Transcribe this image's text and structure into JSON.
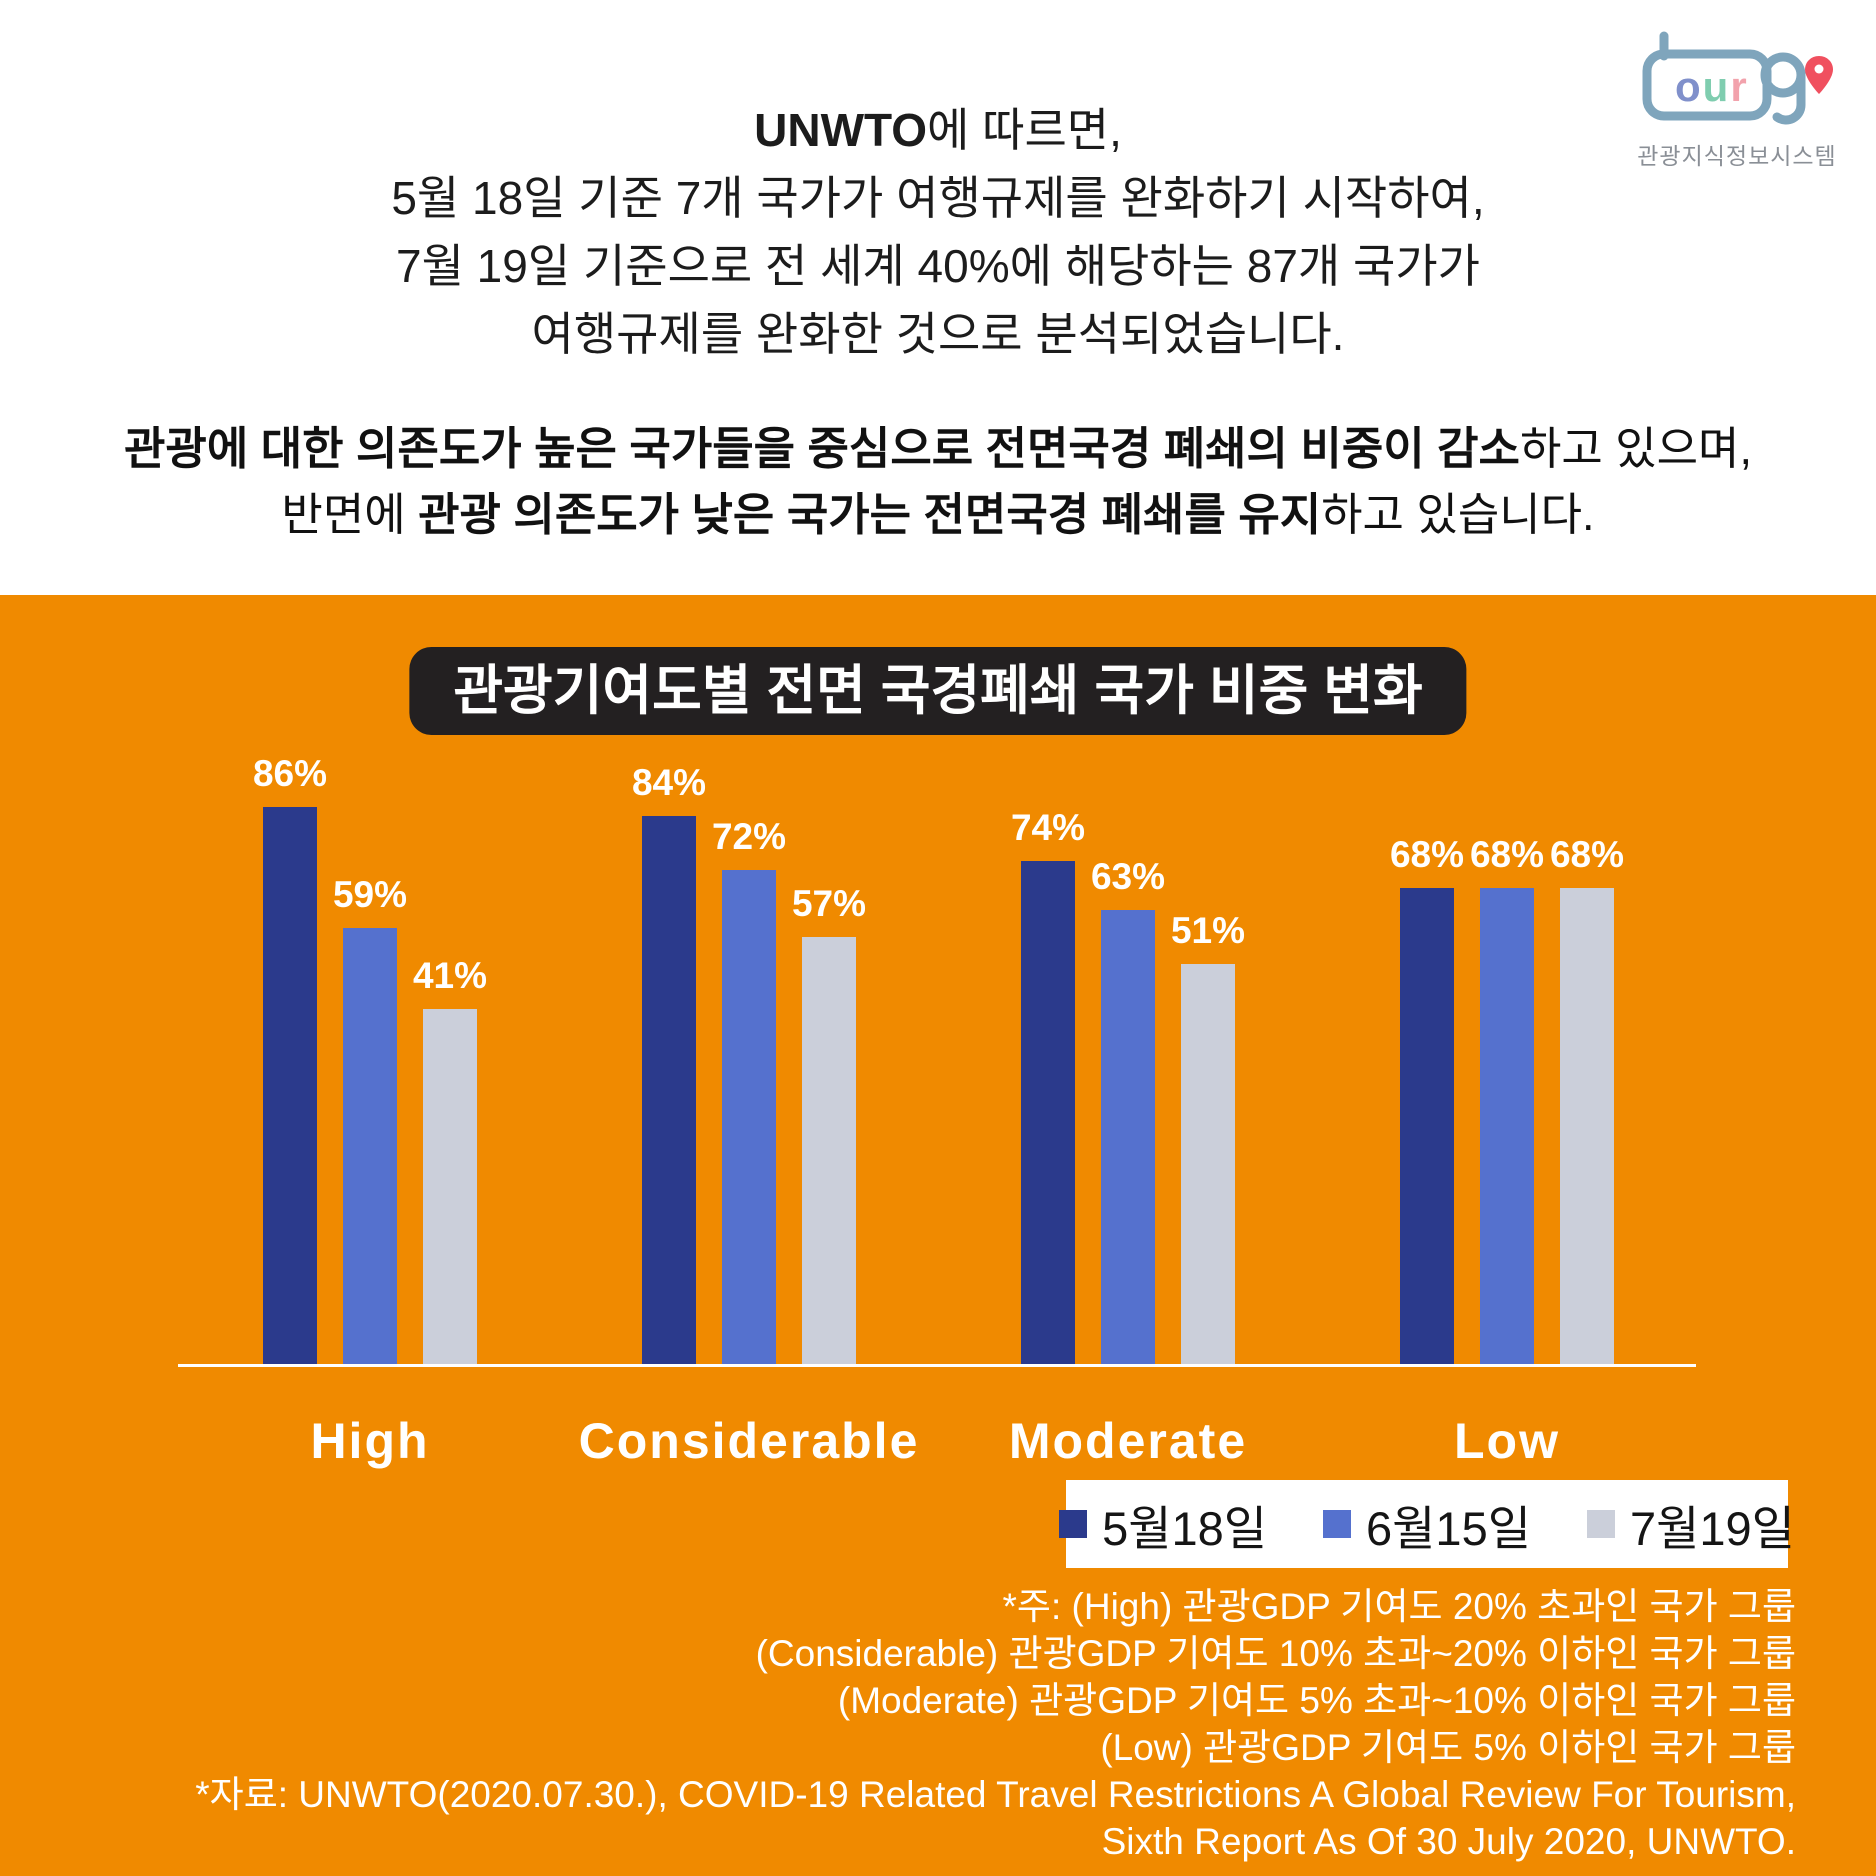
{
  "logo": {
    "brand": "tour9",
    "caption": "관광지식정보시스템",
    "outline_color": "#7FA5BC",
    "pin_color": "#F0505F",
    "letter_colors": {
      "o": "#8090CB",
      "u": "#7FCDAF",
      "r": "#F2A2AC"
    }
  },
  "intro": {
    "lines": [
      [
        {
          "t": "UNWTO",
          "b": true
        },
        {
          "t": "에 따르면,",
          "b": false
        }
      ],
      [
        {
          "t": "5월 18일 기준 7개 국가가 여행규제를 완화하기 시작하여,",
          "b": false
        }
      ],
      [
        {
          "t": "7월 19일 기준으로 전 세계 40%에 해당하는 87개 국가가",
          "b": false
        }
      ],
      [
        {
          "t": "여행규제를 완화한 것으로 분석되었습니다.",
          "b": false
        }
      ]
    ]
  },
  "summary": {
    "lines": [
      [
        {
          "t": "관광에 대한 의존도가 높은 국가들을 중심으로 전면국경 폐쇄의 비중이 감소",
          "b": true
        },
        {
          "t": "하고 있으며,",
          "b": false
        }
      ],
      [
        {
          "t": "반면에 ",
          "b": false
        },
        {
          "t": "관광 의존도가 낮은 국가는 전면국경 폐쇄를 유지",
          "b": true
        },
        {
          "t": "하고 있습니다.",
          "b": false
        }
      ]
    ]
  },
  "chart_data": {
    "type": "bar",
    "title": "관광기여도별 전면 국경폐쇄 국가 비중 변화",
    "categories": [
      "High",
      "Considerable",
      "Moderate",
      "Low"
    ],
    "series": [
      {
        "name": "5월18일",
        "color": "#2B3A8C",
        "values": [
          86,
          84,
          74,
          68
        ]
      },
      {
        "name": "6월15일",
        "color": "#5571CE",
        "values": [
          59,
          72,
          63,
          68
        ]
      },
      {
        "name": "7월19일",
        "color": "#CBCFDA",
        "values": [
          41,
          57,
          51,
          68
        ]
      }
    ],
    "unit": "%",
    "ylim": [
      0,
      100
    ],
    "grid": false,
    "value_labels": true,
    "legend_position": "bottom-right",
    "background": "#F08A00",
    "axis_color": "#FFFFFF"
  },
  "footnotes": [
    "*주: (High) 관광GDP 기여도 20% 초과인 국가 그룹",
    "(Considerable) 관광GDP 기여도 10% 초과~20% 이하인 국가 그룹",
    "(Moderate) 관광GDP 기여도 5% 초과~10% 이하인 국가 그룹",
    "(Low) 관광GDP 기여도 5% 이하인 국가 그룹",
    "*자료: UNWTO(2020.07.30.), COVID-19 Related Travel Restrictions A Global Review For Tourism,",
    "Sixth Report As Of 30 July 2020, UNWTO."
  ]
}
